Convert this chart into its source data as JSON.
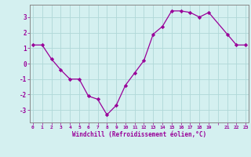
{
  "x": [
    0,
    1,
    2,
    3,
    4,
    5,
    6,
    7,
    8,
    9,
    10,
    11,
    12,
    13,
    14,
    15,
    16,
    17,
    18,
    19,
    21,
    22,
    23
  ],
  "y": [
    1.2,
    1.2,
    0.3,
    -0.4,
    -1.0,
    -1.0,
    -2.1,
    -2.3,
    -3.3,
    -2.7,
    -1.4,
    -0.6,
    0.2,
    1.9,
    2.4,
    3.4,
    3.4,
    3.3,
    3.0,
    3.3,
    1.9,
    1.2,
    1.2
  ],
  "line_color": "#990099",
  "marker": "D",
  "marker_size": 2.2,
  "bg_color": "#d4f0f0",
  "grid_color": "#b0d8d8",
  "xlabel": "Windchill (Refroidissement éolien,°C)",
  "xlabel_color": "#990099",
  "tick_color": "#990099",
  "axis_color": "#888888",
  "ylim": [
    -3.8,
    3.8
  ],
  "yticks": [
    -3,
    -2,
    -1,
    0,
    1,
    2,
    3
  ],
  "xlim": [
    -0.3,
    23.3
  ]
}
